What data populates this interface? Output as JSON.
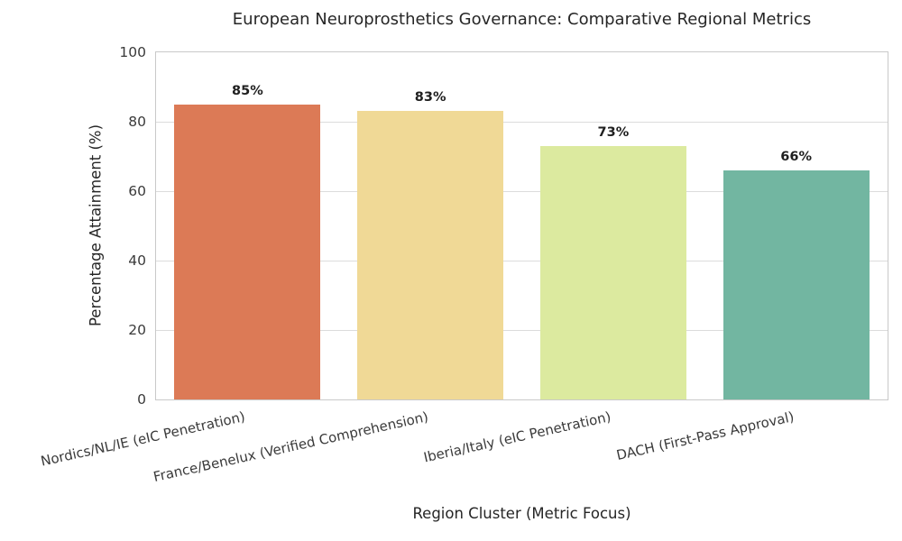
{
  "chart_data": {
    "type": "bar",
    "title": "European Neuroprosthetics Governance: Comparative Regional Metrics",
    "xlabel": "Region Cluster (Metric Focus)",
    "ylabel": "Percentage Attainment (%)",
    "categories": [
      "Nordics/NL/IE (eIC Penetration)",
      "France/Benelux (Verified Comprehension)",
      "Iberia/Italy (eIC Penetration)",
      "DACH (First-Pass Approval)"
    ],
    "values": [
      85,
      83,
      73,
      66
    ],
    "bar_labels": [
      "85%",
      "83%",
      "73%",
      "66%"
    ],
    "bar_colors": [
      "#dc7a56",
      "#f0d996",
      "#dcea9f",
      "#72b6a1"
    ],
    "ylim": [
      0,
      100
    ],
    "yticks": [
      0,
      20,
      40,
      60,
      80,
      100
    ],
    "grid": true,
    "legend": "none",
    "x_tick_rotation_deg": 12.5,
    "bar_width_fraction": 0.8
  },
  "colors": {
    "background": "#ffffff",
    "grid": "#dcdcdc",
    "frame": "#c9c9c9",
    "title_text": "#262626",
    "axis_label_text": "#262626",
    "tick_text": "#3a3a3a",
    "value_label_text": "#1f1f1f"
  }
}
